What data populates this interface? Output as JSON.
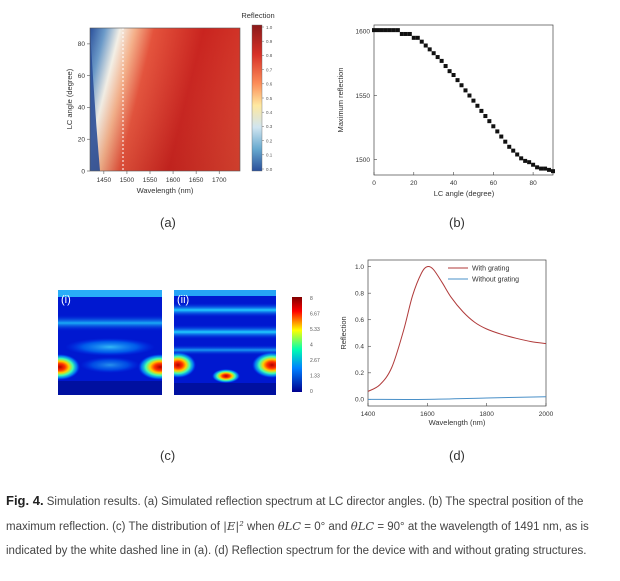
{
  "panels": {
    "a": {
      "label": "(a)",
      "colorbar_title": "Reflection",
      "colorbar_ticks": [
        "1.0",
        "0.9",
        "0.8",
        "0.7",
        "0.6",
        "0.5",
        "0.4",
        "0.3",
        "0.2",
        "0.1",
        "0.0"
      ],
      "x_label": "Wavelength (nm)",
      "y_label": "LC angle (degree)",
      "x_ticks": [
        "1450",
        "1500",
        "1550",
        "1600",
        "1650",
        "1700"
      ],
      "y_ticks": [
        "0",
        "20",
        "40",
        "60",
        "80"
      ],
      "dashed_line_wavelength": 1491
    },
    "b": {
      "label": "(b)"
    },
    "c": {
      "label": "(c)",
      "sub_i": "(i)",
      "sub_ii": "(ii)",
      "colorbar_ticks": [
        "8",
        "6.67",
        "5.33",
        "4",
        "2.67",
        "1.33",
        "0"
      ]
    },
    "d": {
      "label": "(d)"
    }
  },
  "chart_data": [
    {
      "type": "scatter",
      "panel": "b",
      "xlabel": "LC angle (degree)",
      "ylabel": "Maximum reflection",
      "xlim": [
        0,
        90
      ],
      "ylim": [
        1488,
        1605
      ],
      "x_ticks": [
        "0",
        "20",
        "40",
        "60",
        "80"
      ],
      "y_ticks": [
        "1500",
        "1550",
        "1600"
      ],
      "x": [
        0,
        2,
        4,
        6,
        8,
        10,
        12,
        14,
        16,
        18,
        20,
        22,
        24,
        26,
        28,
        30,
        32,
        34,
        36,
        38,
        40,
        42,
        44,
        46,
        48,
        50,
        52,
        54,
        56,
        58,
        60,
        62,
        64,
        66,
        68,
        70,
        72,
        74,
        76,
        78,
        80,
        82,
        84,
        86,
        88,
        90
      ],
      "y": [
        1601,
        1601,
        1601,
        1601,
        1601,
        1601,
        1601,
        1598,
        1598,
        1598,
        1595,
        1595,
        1592,
        1589,
        1586,
        1583,
        1580,
        1577,
        1573,
        1569,
        1566,
        1562,
        1558,
        1554,
        1550,
        1546,
        1542,
        1538,
        1534,
        1530,
        1526,
        1522,
        1518,
        1514,
        1510,
        1507,
        1504,
        1501,
        1499,
        1498,
        1496,
        1494,
        1493,
        1493,
        1492,
        1491
      ]
    },
    {
      "type": "line",
      "panel": "d",
      "xlabel": "Wavelength (nm)",
      "ylabel": "Reflection",
      "xlim": [
        1400,
        2000
      ],
      "ylim": [
        -0.05,
        1.05
      ],
      "x_ticks": [
        "1400",
        "1600",
        "1800",
        "2000"
      ],
      "y_ticks": [
        "0.0",
        "0.2",
        "0.4",
        "0.6",
        "0.8",
        "1.0"
      ],
      "legend_position": "top-right",
      "series": [
        {
          "name": "With grating",
          "color": "#b03a3a",
          "x": [
            1400,
            1440,
            1480,
            1520,
            1550,
            1580,
            1600,
            1620,
            1650,
            1680,
            1720,
            1760,
            1800,
            1850,
            1900,
            1950,
            2000
          ],
          "y": [
            0.06,
            0.11,
            0.24,
            0.52,
            0.78,
            0.95,
            1.0,
            0.98,
            0.88,
            0.77,
            0.66,
            0.58,
            0.53,
            0.49,
            0.46,
            0.435,
            0.42
          ]
        },
        {
          "name": "Without grating",
          "color": "#4a90c8",
          "x": [
            1400,
            1600,
            1800,
            2000
          ],
          "y": [
            0.0,
            0.0,
            0.01,
            0.02
          ]
        }
      ]
    }
  ],
  "caption": {
    "fig_label": "Fig. 4.",
    "s1": " Simulation results. (a) Simulated reflection spectrum at LC director angles. (b) The spectral position of the maximum reflection. (c) The distribution of ",
    "field": "|E|²",
    "s2": " when ",
    "theta1": "θLC",
    "s3": " = 0° and ",
    "theta2": "θLC",
    "s4": " = 90° at the wavelength of 1491 nm, as is indicated by the white dashed line in (a). (d) Reflection spectrum for the device with and without grating structures."
  },
  "colors": {
    "heat_high": "#c9241f",
    "heat_mid": "#f6e6b0",
    "heat_low": "#2a4f9a",
    "jet_high": "#b00000",
    "jet_low": "#0000a8"
  }
}
